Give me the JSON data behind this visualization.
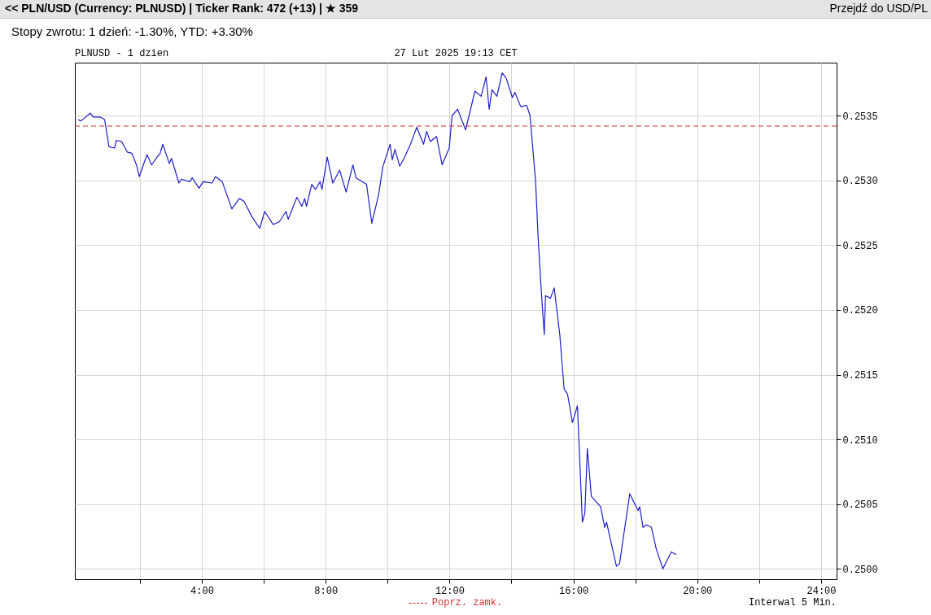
{
  "chart_data": {
    "type": "line",
    "title": "27 Lut 2025 19:13 CET",
    "subtitle": "PLNUSD - 1 dzien",
    "annotations": [
      "<< PLN/USD (Currency: PLNUSD) | Ticker Rank: 472 (+13) | ★ 359",
      "Przejdź do USD/PL",
      "Stopy zwrotu: 1 dzień: -1.30%, YTD: +3.30%",
      "Interwal 5 Min."
    ],
    "x": [
      0,
      0.1,
      0.4,
      0.49,
      0.71,
      0.86,
      0.93,
      1.0,
      1.18,
      1.24,
      1.41,
      1.59,
      1.74,
      1.89,
      1.98,
      2.23,
      2.38,
      2.58,
      2.64,
      2.74,
      2.95,
      3.02,
      3.26,
      3.34,
      3.61,
      3.69,
      3.91,
      4.04,
      4.33,
      4.44,
      4.66,
      4.97,
      5.21,
      5.36,
      5.62,
      5.87,
      6.03,
      6.3,
      6.5,
      6.72,
      6.79,
      7.07,
      7.23,
      7.32,
      7.38,
      7.55,
      7.67,
      7.82,
      7.88,
      8.05,
      8.23,
      8.45,
      8.66,
      8.88,
      8.98,
      9.32,
      9.49,
      9.71,
      9.84,
      10.08,
      10.15,
      10.24,
      10.39,
      10.53,
      10.74,
      10.94,
      11.16,
      11.26,
      11.38,
      11.58,
      11.76,
      11.99,
      12.08,
      12.26,
      12.52,
      12.82,
      13.02,
      13.18,
      13.28,
      13.37,
      13.53,
      13.7,
      13.83,
      14.03,
      14.11,
      14.3,
      14.49,
      14.6,
      14.78,
      14.86,
      14.97,
      15.06,
      15.1,
      15.26,
      15.38,
      15.56,
      15.7,
      15.81,
      15.97,
      16.13,
      16.29,
      16.37,
      16.45,
      16.58,
      16.88,
      17.01,
      17.07,
      17.39,
      17.49,
      17.82,
      18.09,
      18.14,
      18.25,
      18.36,
      18.52,
      18.68,
      18.89,
      19.16,
      19.32
    ],
    "series": [
      {
        "color": "#1e1ecc",
        "values": [
          0.25347,
          0.25346,
          0.25352,
          0.25349,
          0.25349,
          0.25347,
          0.25337,
          0.25326,
          0.25325,
          0.25331,
          0.2533,
          0.25322,
          0.25321,
          0.25312,
          0.25303,
          0.2532,
          0.25312,
          0.25319,
          0.2532,
          0.25328,
          0.25313,
          0.25317,
          0.25298,
          0.25301,
          0.25299,
          0.25302,
          0.25294,
          0.25299,
          0.25298,
          0.25303,
          0.25299,
          0.25278,
          0.25286,
          0.25284,
          0.25272,
          0.25263,
          0.25276,
          0.25266,
          0.25268,
          0.25276,
          0.2527,
          0.25287,
          0.2528,
          0.25286,
          0.2528,
          0.25297,
          0.25293,
          0.25299,
          0.25293,
          0.25318,
          0.25298,
          0.25308,
          0.25291,
          0.25312,
          0.25302,
          0.25297,
          0.25267,
          0.25289,
          0.2531,
          0.25328,
          0.25316,
          0.25324,
          0.25311,
          0.25317,
          0.25328,
          0.25341,
          0.25328,
          0.25338,
          0.2533,
          0.25334,
          0.25312,
          0.25325,
          0.2535,
          0.25355,
          0.25339,
          0.25369,
          0.25365,
          0.2538,
          0.25355,
          0.2537,
          0.25365,
          0.25383,
          0.25379,
          0.25364,
          0.25368,
          0.25357,
          0.25358,
          0.2535,
          0.25299,
          0.25256,
          0.25212,
          0.25181,
          0.25211,
          0.25209,
          0.25217,
          0.25181,
          0.25139,
          0.25135,
          0.25113,
          0.25126,
          0.25036,
          0.25043,
          0.25093,
          0.25056,
          0.25048,
          0.25032,
          0.25036,
          0.25002,
          0.25004,
          0.25058,
          0.25045,
          0.25048,
          0.25032,
          0.25034,
          0.25032,
          0.25015,
          0.25,
          0.25013,
          0.25011
        ]
      }
    ],
    "xlim": [
      -0.1,
      24.5
    ],
    "ylim": [
      0.24992,
      0.25391
    ],
    "xticks": [
      {
        "value": 2,
        "label": null
      },
      {
        "value": 4,
        "label": "4:00"
      },
      {
        "value": 6,
        "label": null
      },
      {
        "value": 8,
        "label": "8:00"
      },
      {
        "value": 10,
        "label": null
      },
      {
        "value": 12,
        "label": "12:00"
      },
      {
        "value": 14,
        "label": null
      },
      {
        "value": 16,
        "label": "16:00"
      },
      {
        "value": 18,
        "label": null
      },
      {
        "value": 20,
        "label": "20:00"
      },
      {
        "value": 22,
        "label": null
      },
      {
        "value": 24,
        "label": "24:00"
      }
    ],
    "yticks": [
      {
        "value": 0.25,
        "label": "0.2500"
      },
      0.2505,
      {
        "value": 0.251,
        "label": "0.2510"
      },
      0.2515,
      {
        "value": 0.252,
        "label": "0.2520"
      },
      0.2525,
      {
        "value": 0.253,
        "label": "0.2530"
      },
      0.2535
    ],
    "ref_lines": [
      {
        "axis": "y",
        "value": 0.25342,
        "label": "Poprz. zamk.",
        "color": "#cc3333",
        "line_style": "dashed"
      }
    ],
    "grid": true,
    "marker": "none",
    "line_style": "solid"
  }
}
